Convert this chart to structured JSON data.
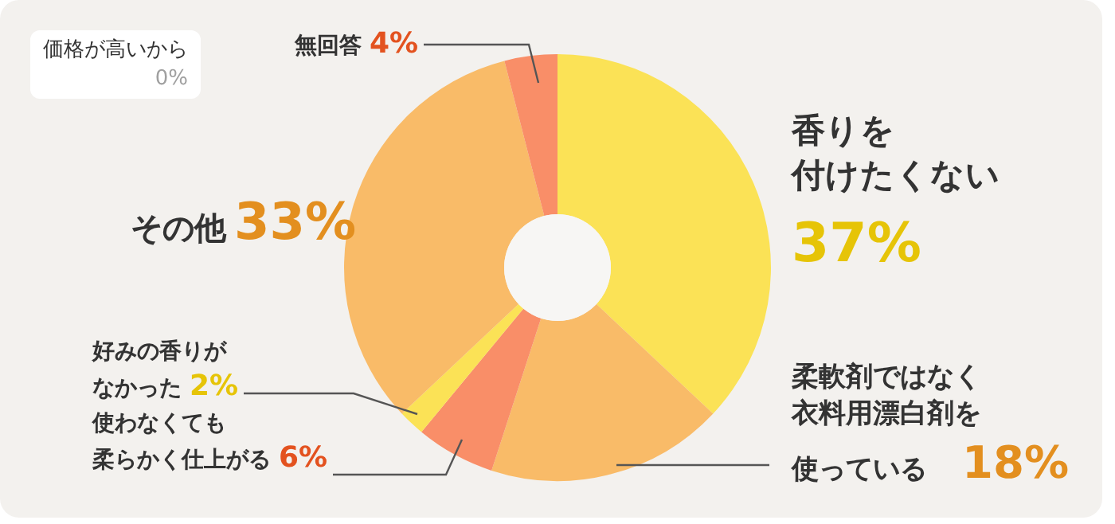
{
  "chart_data": {
    "type": "donut",
    "categories": [
      "香りを付けたくない",
      "柔軟剤ではなく衣料用漂白剤を使っている",
      "使わなくても柔らかく仕上がる",
      "好みの香りがなかった",
      "その他",
      "無回答",
      "価格が高いから"
    ],
    "values": [
      37,
      18,
      6,
      2,
      33,
      4,
      0
    ],
    "value_labels": [
      "37%",
      "18%",
      "6%",
      "2%",
      "33%",
      "4%",
      "0%"
    ],
    "colors": [
      "#fbe256",
      "#f9bb68",
      "#f98e68",
      "#fbe256",
      "#f9bb68",
      "#f98e68",
      "#f9bb68"
    ],
    "legend": false
  }
}
